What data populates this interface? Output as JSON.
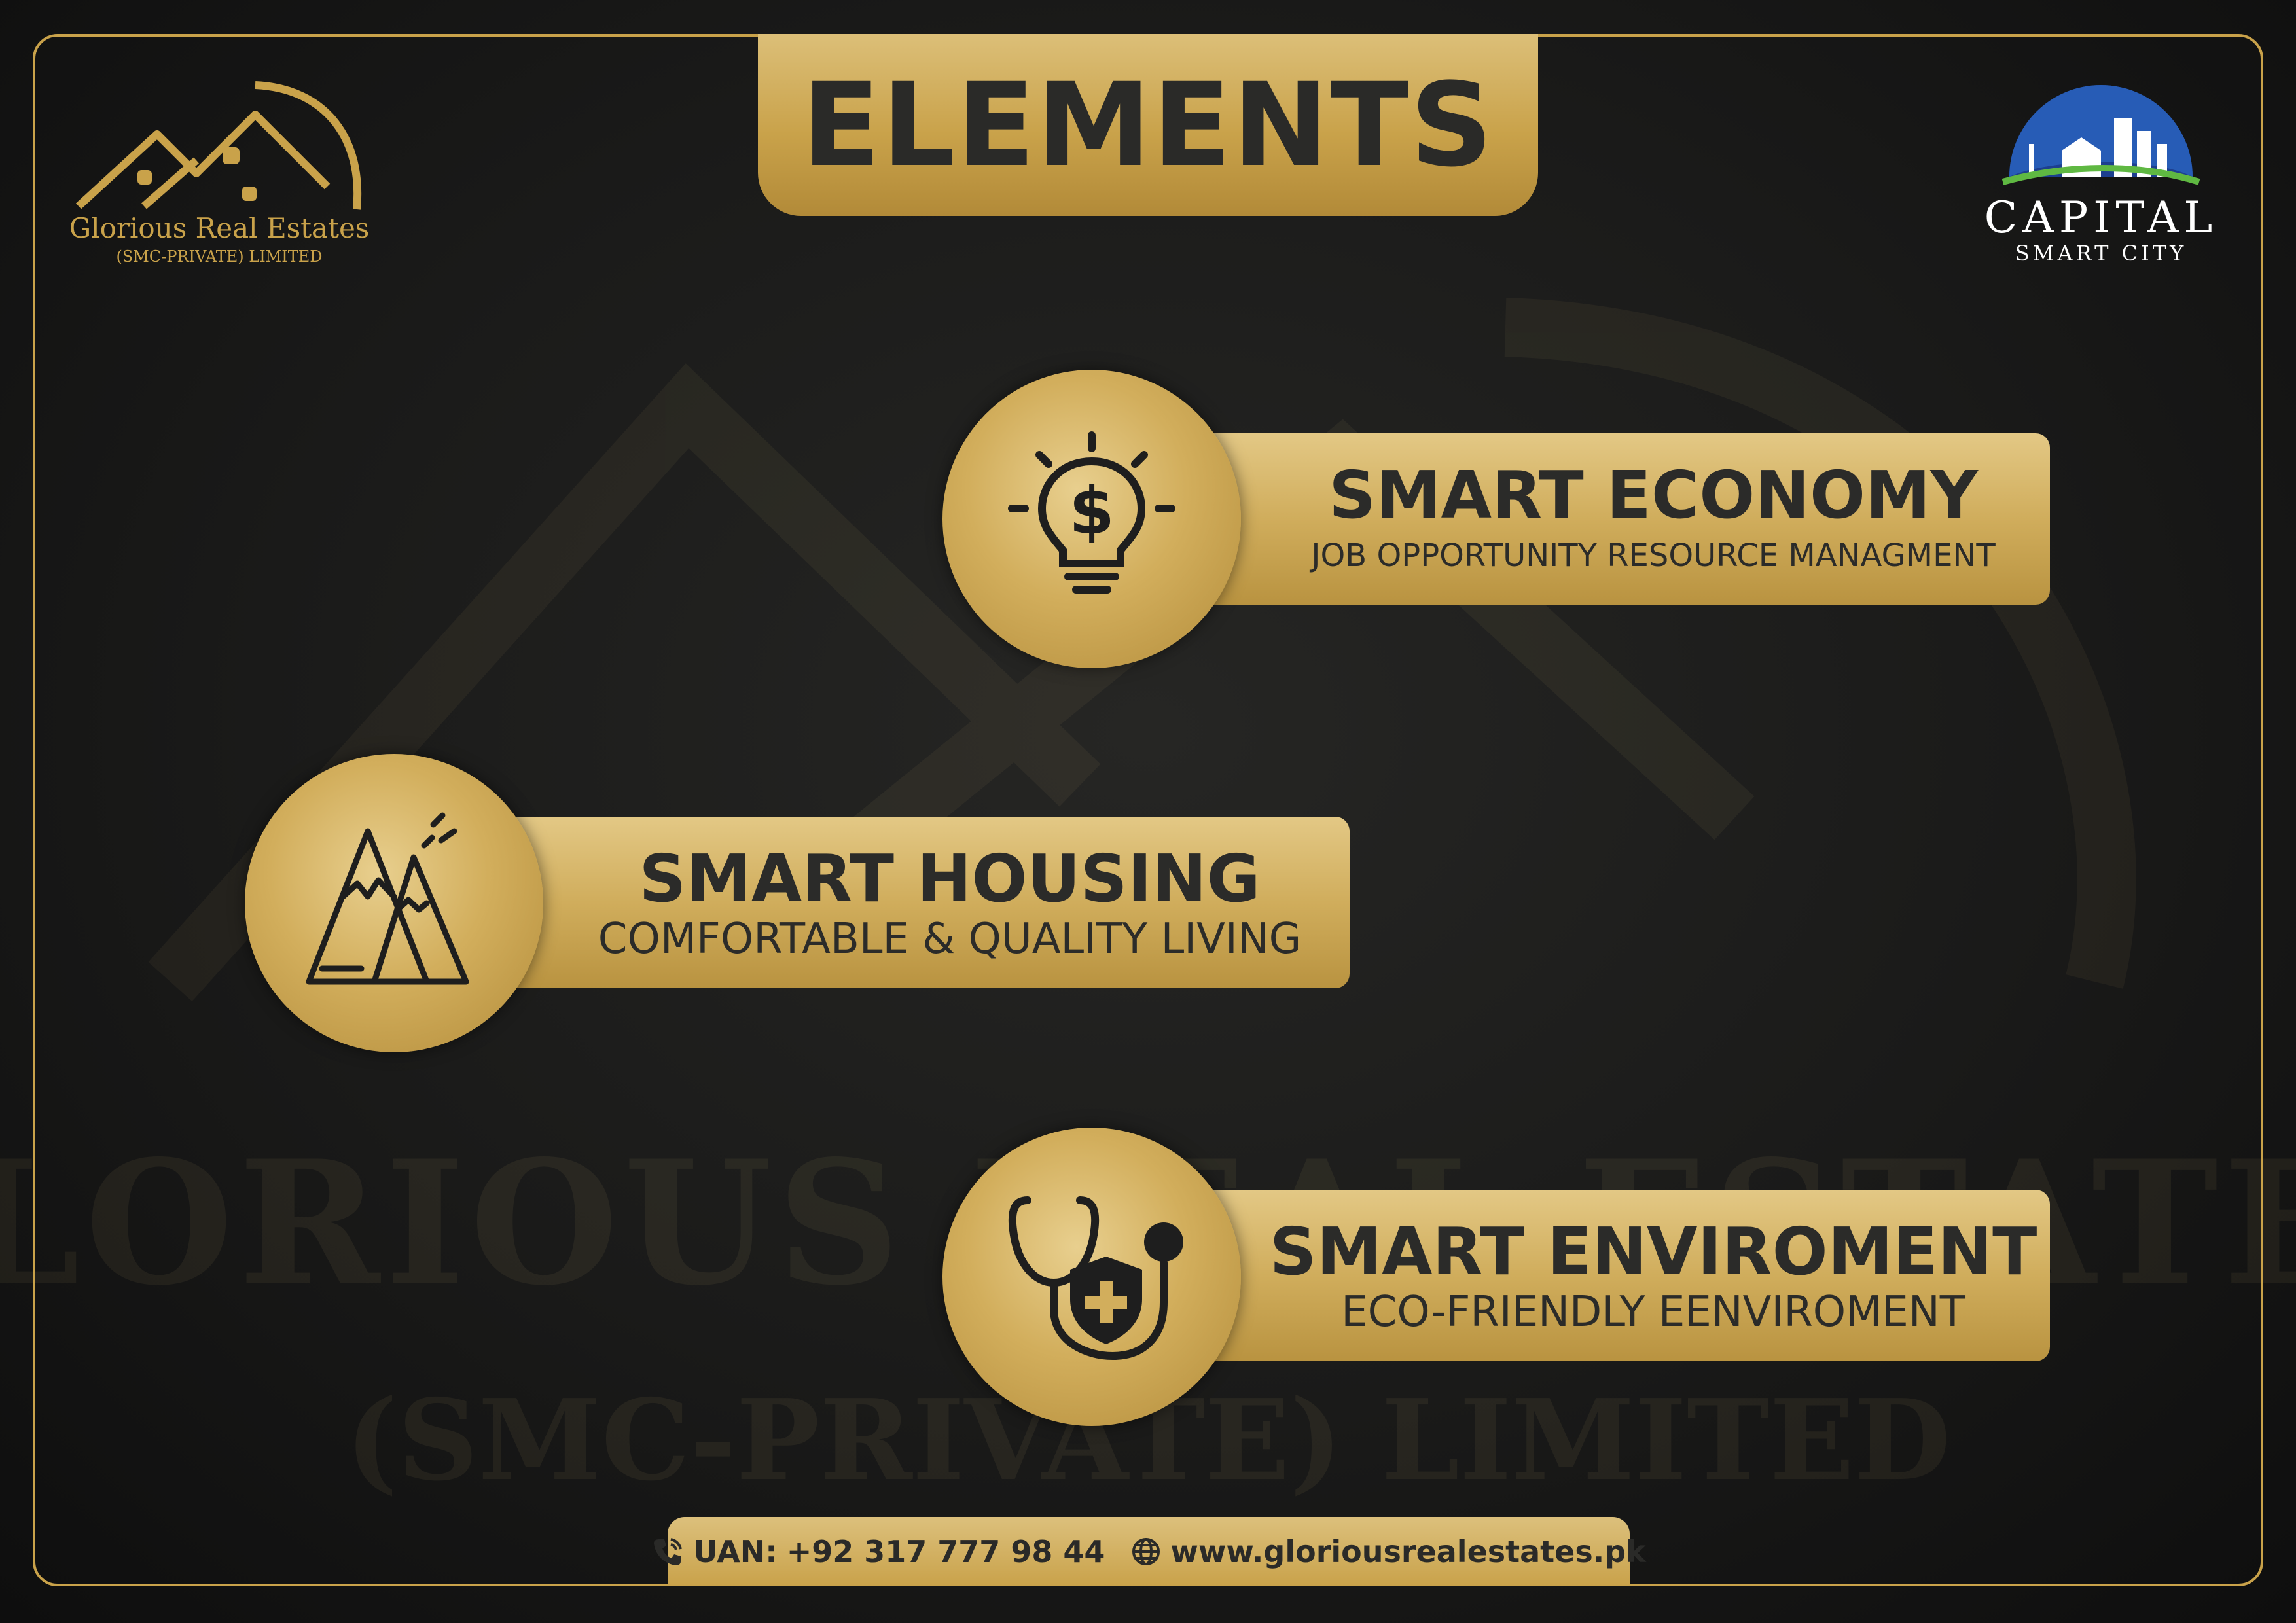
{
  "header": {
    "title": "ELEMENTS"
  },
  "brand_left": {
    "name": "Glorious Real Estates",
    "subtitle": "(SMC-PRIVATE) LIMITED"
  },
  "brand_right": {
    "name": "CAPITAL",
    "subtitle": "SMART CITY"
  },
  "watermark": {
    "text": "GLORIOUS REAL ESTATES",
    "subtext": "(SMC-PRIVATE) LIMITED"
  },
  "elements": [
    {
      "title": "SMART ECONOMY",
      "subtitle": "JOB OPPORTUNITY  RESOURCE MANAGMENT",
      "icon": "lightbulb-dollar-icon"
    },
    {
      "title": "SMART HOUSING",
      "subtitle": "COMFORTABLE & QUALITY LIVING",
      "icon": "mountains-icon"
    },
    {
      "title": "SMART ENVIROMENT",
      "subtitle": "ECO-FRIENDLY EENVIROMENT",
      "icon": "stethoscope-shield-icon"
    }
  ],
  "contact": {
    "uan_label": "UAN:",
    "uan_number": "+92 317 777 98 44",
    "website": "www.gloriousrealestates.pk",
    "phone_icon": "phone-icon",
    "globe_icon": "globe-icon"
  },
  "colors": {
    "gold": "#c9a24a",
    "gold_light": "#e3c885",
    "dark_text": "#2b2b29",
    "background": "#141414"
  }
}
